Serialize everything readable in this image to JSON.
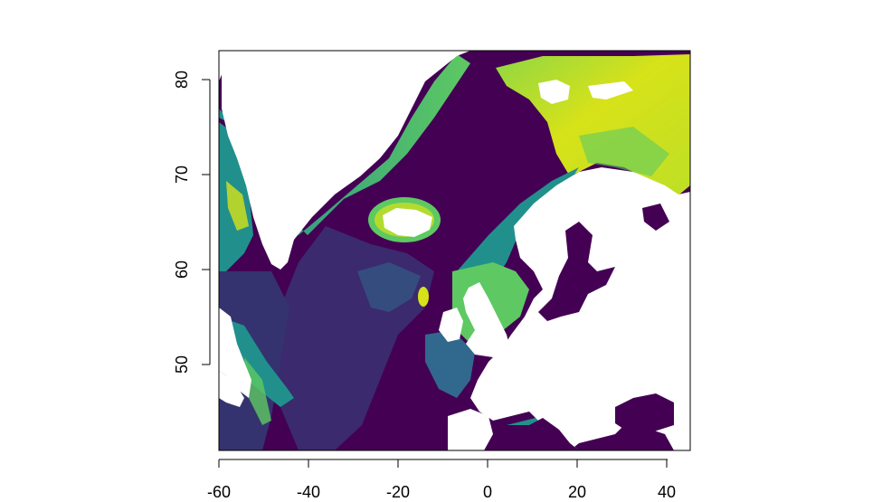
{
  "map": {
    "x_ticks": [
      "-60",
      "-40",
      "-20",
      "0",
      "20",
      "40"
    ],
    "y_ticks": [
      "50",
      "60",
      "70",
      "80"
    ],
    "xlim": [
      -60,
      45
    ],
    "ylim": [
      41,
      83
    ],
    "colormap": "viridis",
    "colors": {
      "deep": "#440154",
      "deep_mid": "#3b2a6e",
      "mid_blue": "#31688e",
      "teal": "#21908d",
      "green": "#5ec962",
      "yellow": "#d7e219",
      "land": "#ffffff"
    }
  }
}
